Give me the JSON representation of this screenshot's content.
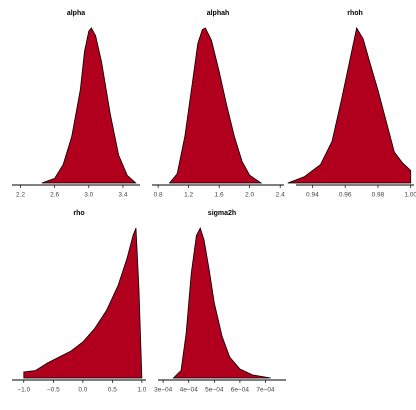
{
  "chart_data": [
    {
      "type": "area",
      "title": "alpha",
      "color": "#b0001e",
      "x": [
        2.45,
        2.6,
        2.7,
        2.8,
        2.9,
        2.95,
        3.0,
        3.03,
        3.08,
        3.15,
        3.25,
        3.35,
        3.45,
        3.55
      ],
      "values": [
        0,
        0.03,
        0.12,
        0.3,
        0.6,
        0.85,
        0.98,
        1,
        0.95,
        0.78,
        0.45,
        0.18,
        0.05,
        0
      ],
      "xlim": [
        2.1,
        3.6
      ],
      "ylim": [
        0,
        1
      ],
      "xticks": [
        2.2,
        2.6,
        {
          "value": 3,
          "label": "3.0"
        },
        3.4
      ]
    },
    {
      "type": "area",
      "title": "alphah",
      "color": "#b0001e",
      "x": [
        0.95,
        1.05,
        1.15,
        1.25,
        1.32,
        1.38,
        1.42,
        1.5,
        1.6,
        1.7,
        1.8,
        1.9,
        2.0,
        2.15
      ],
      "values": [
        0,
        0.06,
        0.3,
        0.65,
        0.9,
        0.99,
        1,
        0.92,
        0.72,
        0.5,
        0.3,
        0.14,
        0.05,
        0
      ],
      "xlim": [
        0.72,
        2.45
      ],
      "ylim": [
        0,
        1
      ],
      "xticks": [
        0.8,
        1.2,
        1.6,
        {
          "value": 2,
          "label": "2.0"
        },
        2.4
      ]
    },
    {
      "type": "area",
      "title": "rhoh",
      "color": "#b0001e",
      "x": [
        0.925,
        0.935,
        0.945,
        0.952,
        0.958,
        0.963,
        0.967,
        0.971,
        0.975,
        0.98,
        0.985,
        0.99,
        0.995,
        1.0
      ],
      "values": [
        0,
        0.04,
        0.12,
        0.27,
        0.55,
        0.8,
        1,
        0.93,
        0.78,
        0.6,
        0.4,
        0.2,
        0.13,
        0.08
      ],
      "xlim": [
        0.93,
        1.002
      ],
      "ylim": [
        0,
        1
      ],
      "xticks": [
        0.94,
        0.96,
        0.98,
        {
          "value": 1,
          "label": "1.00"
        }
      ]
    },
    {
      "type": "area",
      "title": "rho",
      "color": "#b0001e",
      "x": [
        -1,
        -0.8,
        -0.6,
        -0.4,
        -0.2,
        0,
        0.2,
        0.4,
        0.6,
        0.75,
        0.85,
        0.9,
        0.95,
        1.0
      ],
      "values": [
        0.04,
        0.05,
        0.1,
        0.14,
        0.18,
        0.24,
        0.33,
        0.45,
        0.62,
        0.8,
        0.95,
        1,
        0.6,
        0
      ],
      "xlim": [
        -1.2,
        1.07
      ],
      "ylim": [
        0,
        1
      ],
      "xticks": [
        {
          "value": -1,
          "label": "−1.0"
        },
        {
          "value": -0.5,
          "label": "−0.5"
        },
        {
          "value": 0,
          "label": "0.0"
        },
        0.5,
        {
          "value": 1,
          "label": "1.0"
        }
      ]
    },
    {
      "type": "area",
      "title": "sigma2h",
      "color": "#b0001e",
      "x": [
        0.00034,
        0.00037,
        0.00039,
        0.00041,
        0.00043,
        0.000445,
        0.00046,
        0.00048,
        0.0005,
        0.00053,
        0.00056,
        0.0006,
        0.00065,
        0.00072
      ],
      "values": [
        0,
        0.05,
        0.3,
        0.7,
        0.95,
        1,
        0.92,
        0.72,
        0.5,
        0.28,
        0.14,
        0.06,
        0.02,
        0
      ],
      "xlim": [
        0.00028,
        0.00078
      ],
      "ylim": [
        0,
        1
      ],
      "xticks": [
        {
          "value": 0.0003,
          "label": "3e−04"
        },
        {
          "value": 0.0004,
          "label": "4e−04"
        },
        {
          "value": 0.0005,
          "label": "5e−04"
        },
        {
          "value": 0.0006,
          "label": "6e−04"
        },
        {
          "value": 0.0007,
          "label": "7e−04"
        }
      ]
    }
  ]
}
